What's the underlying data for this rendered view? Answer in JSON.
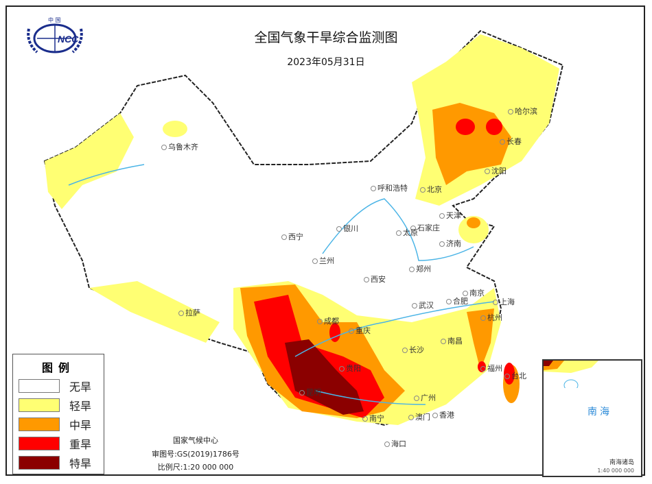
{
  "header": {
    "title": "全国气象干旱综合监测图",
    "date": "2023年05月31日",
    "logo_text": "中国 NCC"
  },
  "legend": {
    "title": "图例",
    "items": [
      {
        "label": "无旱",
        "color": "#ffffff"
      },
      {
        "label": "轻旱",
        "color": "#ffff73"
      },
      {
        "label": "中旱",
        "color": "#ff9900"
      },
      {
        "label": "重旱",
        "color": "#ff0000"
      },
      {
        "label": "特旱",
        "color": "#8b0000"
      }
    ]
  },
  "footer": {
    "agency": "国家气候中心",
    "approval": "审图号:GS(2019)1786号",
    "scale": "比例尺:1:20 000 000"
  },
  "inset": {
    "sea": "南海",
    "name": "南海诸岛",
    "scale": "1:40 000 000"
  },
  "cities": [
    {
      "name": "乌鲁木齐"
    },
    {
      "name": "拉萨"
    },
    {
      "name": "西宁"
    },
    {
      "name": "兰州"
    },
    {
      "name": "银川"
    },
    {
      "name": "呼和浩特"
    },
    {
      "name": "北京"
    },
    {
      "name": "天津"
    },
    {
      "name": "石家庄"
    },
    {
      "name": "太原"
    },
    {
      "name": "济南"
    },
    {
      "name": "郑州"
    },
    {
      "name": "西安"
    },
    {
      "name": "南京"
    },
    {
      "name": "合肥"
    },
    {
      "name": "上海"
    },
    {
      "name": "武汉"
    },
    {
      "name": "杭州"
    },
    {
      "name": "成都"
    },
    {
      "name": "重庆"
    },
    {
      "name": "长沙"
    },
    {
      "name": "南昌"
    },
    {
      "name": "贵阳"
    },
    {
      "name": "福州"
    },
    {
      "name": "台北"
    },
    {
      "name": "昆明"
    },
    {
      "name": "南宁"
    },
    {
      "name": "广州"
    },
    {
      "name": "香港"
    },
    {
      "name": "澳门"
    },
    {
      "name": "海口"
    },
    {
      "name": "哈尔滨"
    },
    {
      "name": "长春"
    },
    {
      "name": "沈阳"
    }
  ]
}
